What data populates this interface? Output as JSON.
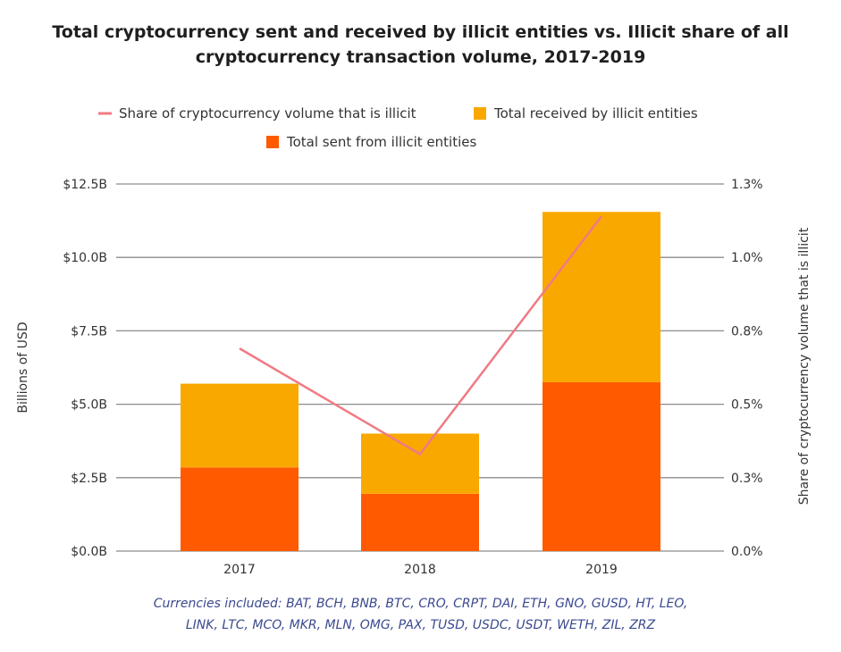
{
  "chart_data": {
    "type": "bar",
    "title_lines": [
      "Total cryptocurrency sent and received by illicit entities vs. Illicit share of all",
      "cryptocurrency transaction volume, 2017-2019"
    ],
    "categories": [
      "2017",
      "2018",
      "2019"
    ],
    "stacked": true,
    "series": [
      {
        "name": "Total sent from illicit entities",
        "type": "bar",
        "axis": "left",
        "color": "#ff5a00",
        "values": [
          2.85,
          1.95,
          5.75
        ]
      },
      {
        "name": "Total received by illicit entities",
        "type": "bar",
        "axis": "left",
        "color": "#f9a800",
        "values": [
          2.85,
          2.05,
          5.8
        ]
      },
      {
        "name": "Share of cryptocurrency volume that is illicit",
        "type": "line",
        "axis": "right",
        "color": "#f07a84",
        "values": [
          0.69,
          0.33,
          1.14
        ]
      }
    ],
    "legend_order": [
      "Share of cryptocurrency volume that is illicit",
      "Total received by illicit entities",
      "Total sent from illicit entities"
    ],
    "legend_position": "top",
    "ylabel_left": "Billions of USD",
    "ylabel_right": "Share of cryptocurrency volume that is illicit",
    "ylim_left": [
      0,
      12.5
    ],
    "ylim_right": [
      0,
      1.25
    ],
    "yticks_left": [
      "$0.0B",
      "$2.5B",
      "$5.0B",
      "$7.5B",
      "$10.0B",
      "$12.5B"
    ],
    "yticks_right": [
      "0.0%",
      "0.3%",
      "0.5%",
      "0.8%",
      "1.0%",
      "1.3%"
    ],
    "grid": "horizontal"
  },
  "footnote": [
    "Currencies included: BAT, BCH, BNB, BTC, CRO, CRPT, DAI, ETH, GNO, GUSD, HT, LEO,",
    "LINK, LTC, MCO, MKR, MLN, OMG, PAX, TUSD, USDC, USDT, WETH, ZIL, ZRZ"
  ]
}
